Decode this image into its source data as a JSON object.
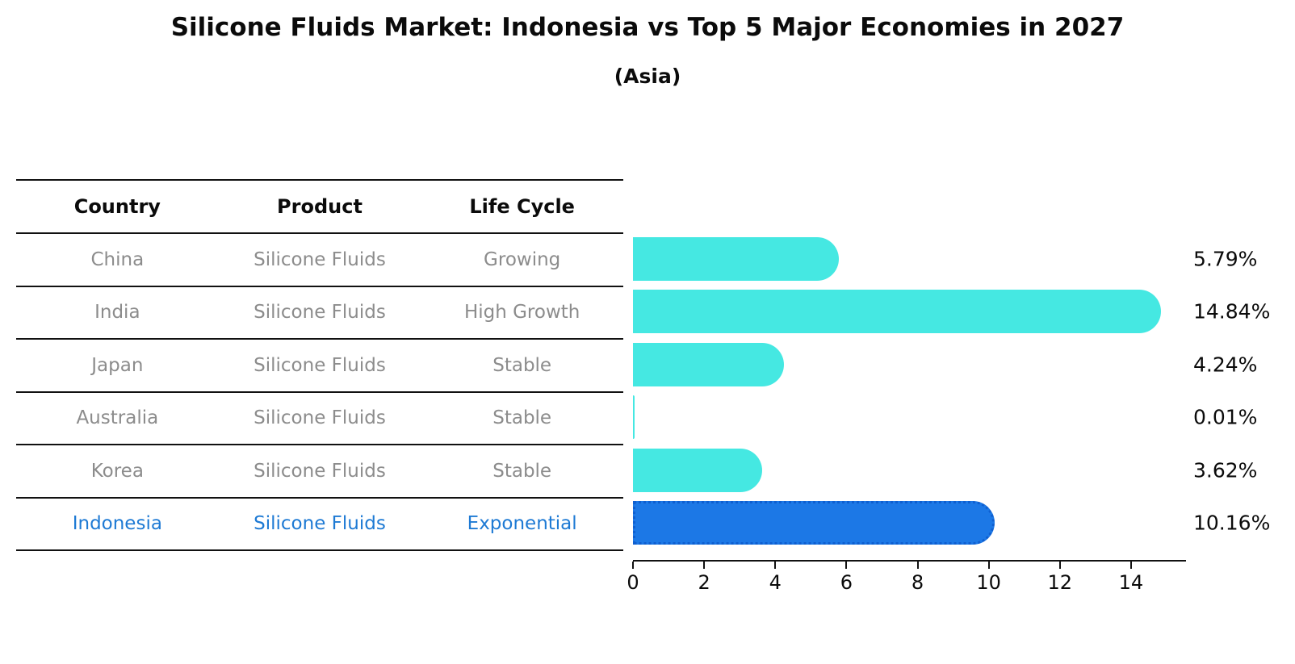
{
  "title": "Silicone Fluids Market: Indonesia vs Top 5 Major Economies in 2027",
  "subtitle": "(Asia)",
  "table": {
    "headers": [
      "Country",
      "Product",
      "Life Cycle"
    ],
    "rows": [
      {
        "country": "China",
        "product": "Silicone Fluids",
        "life_cycle": "Growing",
        "highlight": false
      },
      {
        "country": "India",
        "product": "Silicone Fluids",
        "life_cycle": "High Growth",
        "highlight": false
      },
      {
        "country": "Japan",
        "product": "Silicone Fluids",
        "life_cycle": "Stable",
        "highlight": false
      },
      {
        "country": "Australia",
        "product": "Silicone Fluids",
        "life_cycle": "Stable",
        "highlight": false
      },
      {
        "country": "Korea",
        "product": "Silicone Fluids",
        "life_cycle": "Stable",
        "highlight": false
      },
      {
        "country": "Indonesia",
        "product": "Silicone Fluids",
        "life_cycle": "Exponential",
        "highlight": true
      }
    ]
  },
  "chart_data": {
    "type": "bar",
    "orientation": "horizontal",
    "title": "Silicone Fluids Market: Indonesia vs Top 5 Major Economies in 2027",
    "subtitle": "(Asia)",
    "categories": [
      "China",
      "India",
      "Japan",
      "Australia",
      "Korea",
      "Indonesia"
    ],
    "values": [
      5.79,
      14.84,
      4.24,
      0.01,
      3.62,
      10.16
    ],
    "value_labels": [
      "5.79%",
      "14.84%",
      "4.24%",
      "0.01%",
      "3.62%",
      "10.16%"
    ],
    "x_ticks": [
      0,
      2,
      4,
      6,
      8,
      10,
      12,
      14
    ],
    "xlim": [
      0,
      15.5
    ],
    "grid": false,
    "legend": "none",
    "highlight_index": 5
  },
  "colors": {
    "bar": "#45E8E2",
    "highlight_bar": "#1C78E6",
    "highlight_border": "#0F5FD0",
    "highlight_text": "#1E7AD4",
    "table_text": "#8C8C8C",
    "line": "#111111",
    "background": "#FFFFFF"
  }
}
